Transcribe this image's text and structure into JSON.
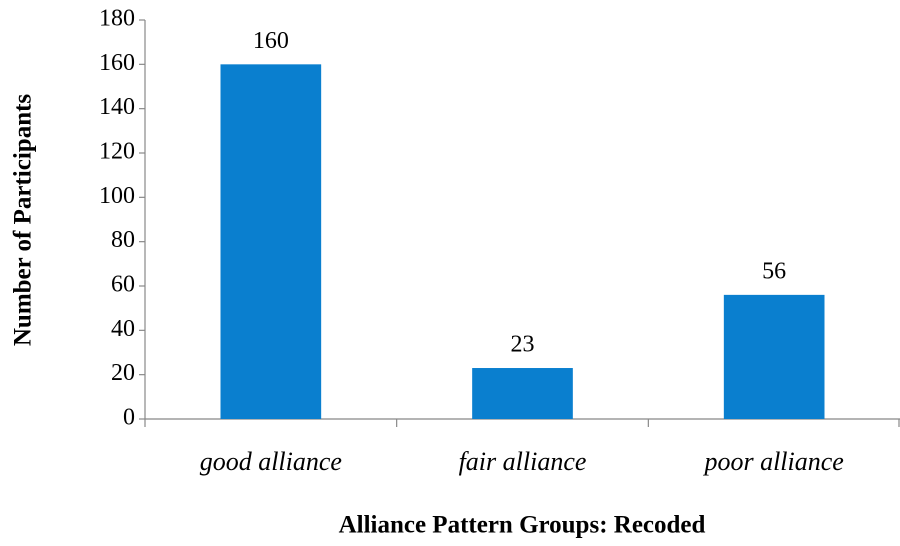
{
  "chart_data": {
    "type": "bar",
    "x_label": "Alliance Pattern Groups: Recoded",
    "y_label": "Number of Participants",
    "categories": [
      "good alliance",
      "fair alliance",
      "poor alliance"
    ],
    "values": [
      160,
      23,
      56
    ],
    "color": "#0a7fcf",
    "ylim": [
      0,
      180
    ],
    "yticks": [
      0,
      20,
      40,
      60,
      80,
      100,
      120,
      140,
      160,
      180
    ],
    "data_labels": true,
    "grid": false
  }
}
